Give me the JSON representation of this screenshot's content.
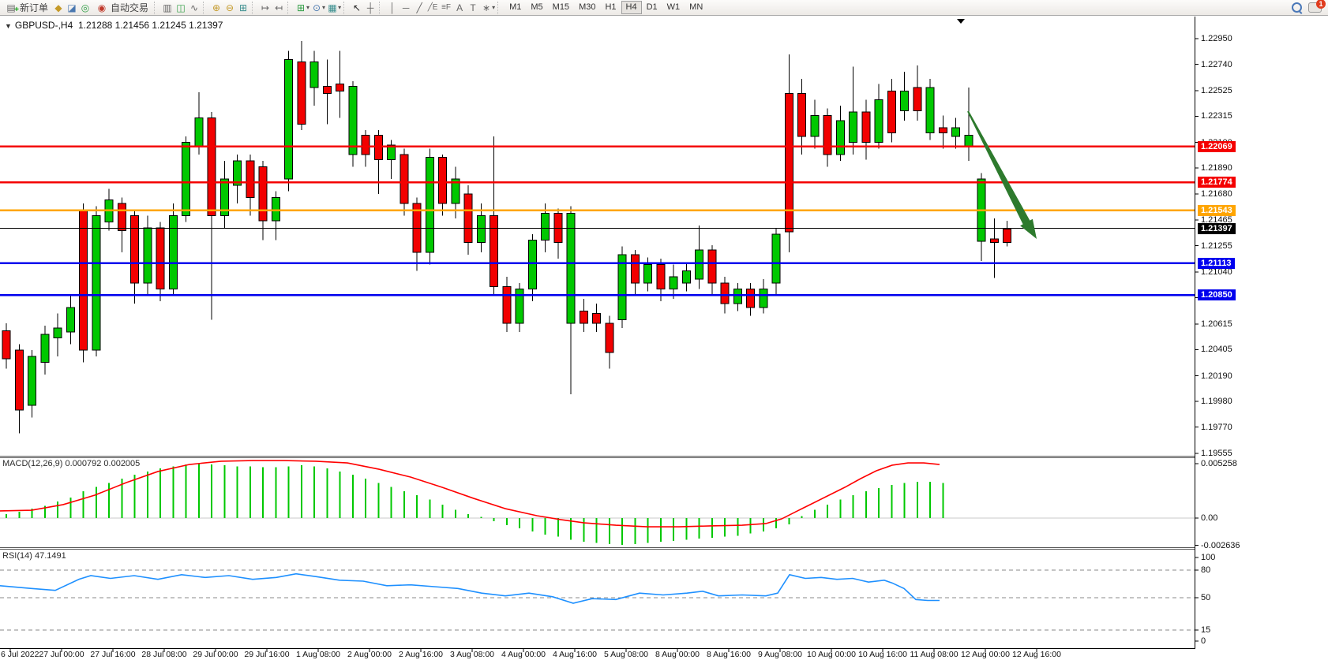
{
  "toolbar": {
    "new_order_label": "新订单",
    "auto_trading_label": "自动交易",
    "timeframes": [
      "M1",
      "M5",
      "M15",
      "M30",
      "H1",
      "H4",
      "D1",
      "W1",
      "MN"
    ],
    "active_timeframe": "H4",
    "notification_count": "1"
  },
  "chart": {
    "symbol_tf": "GBPUSD-,H4",
    "ohlc_text": "1.21288 1.21456 1.21245 1.21397",
    "macd_label_text": "MACD(12,26,9) 0.000792 0.002005",
    "rsi_label_text": "RSI(14) 47.1491"
  },
  "chart_data": {
    "type": "candlestick",
    "symbol": "GBPUSD-",
    "timeframe": "H4",
    "current_bar": {
      "open": 1.21288,
      "high": 1.21456,
      "low": 1.21245,
      "close": 1.21397
    },
    "price_axis_ticks": [
      "1.22950",
      "1.22740",
      "1.22525",
      "1.22315",
      "1.22100",
      "1.21890",
      "1.21680",
      "1.21465",
      "1.21255",
      "1.21040",
      "1.20830",
      "1.20615",
      "1.20405",
      "1.20190",
      "1.19980",
      "1.19770",
      "1.19555"
    ],
    "price_axis_range": {
      "min": 1.19555,
      "max": 1.2295
    },
    "levels": [
      {
        "label": "1.22069",
        "price": 1.22069,
        "color": "#f40000",
        "width": 2.5
      },
      {
        "label": "1.21774",
        "price": 1.21774,
        "color": "#f40000",
        "width": 2.5
      },
      {
        "label": "1.21543",
        "price": 1.21543,
        "color": "#ffa500",
        "width": 2.5
      },
      {
        "label": "1.21397",
        "price": 1.21397,
        "color": "#000000",
        "width": 1
      },
      {
        "label": "1.21113",
        "price": 1.21113,
        "color": "#0000ee",
        "width": 2.5
      },
      {
        "label": "1.20850",
        "price": 1.2085,
        "color": "#0000ee",
        "width": 2.5
      }
    ],
    "x_labels": [
      "6 Jul 2022",
      "27 Jul 00:00",
      "27 Jul 16:00",
      "28 Jul 08:00",
      "29 Jul 00:00",
      "29 Jul 16:00",
      "1 Aug 08:00",
      "2 Aug 00:00",
      "2 Aug 16:00",
      "3 Aug 08:00",
      "4 Aug 00:00",
      "4 Aug 16:00",
      "5 Aug 08:00",
      "8 Aug 00:00",
      "8 Aug 16:00",
      "9 Aug 08:00",
      "10 Aug 00:00",
      "10 Aug 16:00",
      "11 Aug 08:00",
      "12 Aug 00:00",
      "12 Aug 16:00"
    ],
    "candles": [
      [
        0,
        1.2033,
        1.2056,
        1.2025,
        1.2062
      ],
      [
        0,
        1.1991,
        1.204,
        1.1972,
        1.2045
      ],
      [
        1,
        1.1995,
        1.2035,
        1.1985,
        1.204
      ],
      [
        1,
        1.203,
        1.2053,
        1.202,
        1.206
      ],
      [
        1,
        1.205,
        1.2058,
        1.2035,
        1.207
      ],
      [
        1,
        1.2055,
        1.2075,
        1.2045,
        1.2085
      ],
      [
        0,
        1.204,
        1.2155,
        1.203,
        1.216
      ],
      [
        1,
        1.204,
        1.215,
        1.2035,
        1.2158
      ],
      [
        1,
        1.2145,
        1.2163,
        1.2138,
        1.2172
      ],
      [
        0,
        1.2138,
        1.216,
        1.212,
        1.2165
      ],
      [
        0,
        1.2095,
        1.215,
        1.2078,
        1.2155
      ],
      [
        1,
        1.2095,
        1.214,
        1.2085,
        1.215
      ],
      [
        0,
        1.209,
        1.214,
        1.208,
        1.2145
      ],
      [
        1,
        1.209,
        1.215,
        1.2085,
        1.216
      ],
      [
        1,
        1.215,
        1.221,
        1.2145,
        1.2215
      ],
      [
        1,
        1.2207,
        1.223,
        1.22,
        1.2251
      ],
      [
        0,
        1.215,
        1.223,
        1.2065,
        1.2235
      ],
      [
        1,
        1.215,
        1.218,
        1.214,
        1.2195
      ],
      [
        1,
        1.2175,
        1.2195,
        1.216,
        1.22
      ],
      [
        0,
        1.2165,
        1.2195,
        1.215,
        1.22
      ],
      [
        0,
        1.2146,
        1.219,
        1.213,
        1.2195
      ],
      [
        1,
        1.2146,
        1.2165,
        1.213,
        1.217
      ],
      [
        1,
        1.218,
        1.2278,
        1.217,
        1.2285
      ],
      [
        0,
        1.2225,
        1.2276,
        1.222,
        1.2293
      ],
      [
        1,
        1.2255,
        1.2276,
        1.224,
        1.2285
      ],
      [
        0,
        1.225,
        1.2256,
        1.2225,
        1.2278
      ],
      [
        0,
        1.2252,
        1.2258,
        1.223,
        1.2285
      ],
      [
        1,
        1.22,
        1.2256,
        1.219,
        1.226
      ],
      [
        0,
        1.22,
        1.2216,
        1.219,
        1.222
      ],
      [
        0,
        1.2196,
        1.2216,
        1.2168,
        1.222
      ],
      [
        1,
        1.2196,
        1.2208,
        1.218,
        1.2212
      ],
      [
        0,
        1.216,
        1.22,
        1.215,
        1.2205
      ],
      [
        0,
        1.212,
        1.216,
        1.2105,
        1.2165
      ],
      [
        1,
        1.212,
        1.2198,
        1.211,
        1.2205
      ],
      [
        0,
        1.216,
        1.2198,
        1.215,
        1.22
      ],
      [
        1,
        1.216,
        1.218,
        1.2148,
        1.219
      ],
      [
        0,
        1.2128,
        1.2168,
        1.2118,
        1.2175
      ],
      [
        1,
        1.2128,
        1.215,
        1.212,
        1.216
      ],
      [
        0,
        1.2092,
        1.215,
        1.2085,
        1.2215
      ],
      [
        0,
        1.2062,
        1.2092,
        1.2055,
        1.21
      ],
      [
        1,
        1.2062,
        1.209,
        1.2055,
        1.2095
      ],
      [
        1,
        1.209,
        1.213,
        1.208,
        1.2135
      ],
      [
        1,
        1.213,
        1.2152,
        1.212,
        1.216
      ],
      [
        0,
        1.2128,
        1.2152,
        1.2115,
        1.2156
      ],
      [
        1,
        1.2062,
        1.2152,
        1.2004,
        1.2158
      ],
      [
        0,
        1.2062,
        1.2072,
        1.2055,
        1.2082
      ],
      [
        0,
        1.2062,
        1.207,
        1.2055,
        1.2078
      ],
      [
        0,
        1.2038,
        1.2062,
        1.2025,
        1.2068
      ],
      [
        1,
        1.2065,
        1.2118,
        1.2058,
        1.2125
      ],
      [
        0,
        1.2095,
        1.2118,
        1.2085,
        1.2122
      ],
      [
        1,
        1.2095,
        1.211,
        1.2088,
        1.2116
      ],
      [
        0,
        1.209,
        1.211,
        1.208,
        1.2115
      ],
      [
        1,
        1.209,
        1.21,
        1.2082,
        1.211
      ],
      [
        1,
        1.2095,
        1.2105,
        1.2088,
        1.2112
      ],
      [
        1,
        1.2098,
        1.2122,
        1.209,
        1.2142
      ],
      [
        0,
        1.2095,
        1.2122,
        1.2085,
        1.2126
      ],
      [
        0,
        1.2078,
        1.2095,
        1.207,
        1.21
      ],
      [
        1,
        1.2078,
        1.209,
        1.2072,
        1.2095
      ],
      [
        0,
        1.2075,
        1.209,
        1.2068,
        1.2095
      ],
      [
        1,
        1.2075,
        1.209,
        1.207,
        1.2098
      ],
      [
        1,
        1.2095,
        1.2135,
        1.2085,
        1.214
      ],
      [
        0,
        1.2137,
        1.225,
        1.212,
        1.2282
      ],
      [
        0,
        1.2215,
        1.225,
        1.22,
        1.2262
      ],
      [
        1,
        1.2215,
        1.2232,
        1.2205,
        1.2245
      ],
      [
        0,
        1.22,
        1.2232,
        1.219,
        1.2238
      ],
      [
        1,
        1.22,
        1.2228,
        1.2195,
        1.224
      ],
      [
        1,
        1.221,
        1.2235,
        1.22,
        1.2272
      ],
      [
        0,
        1.221,
        1.2235,
        1.2196,
        1.2245
      ],
      [
        1,
        1.221,
        1.2245,
        1.2205,
        1.2258
      ],
      [
        0,
        1.2218,
        1.2252,
        1.221,
        1.2262
      ],
      [
        1,
        1.2236,
        1.2252,
        1.2228,
        1.2268
      ],
      [
        0,
        1.2236,
        1.2255,
        1.2228,
        1.2273
      ],
      [
        1,
        1.2218,
        1.2255,
        1.2212,
        1.2262
      ],
      [
        0,
        1.2218,
        1.2222,
        1.2205,
        1.2232
      ],
      [
        1,
        1.2215,
        1.2222,
        1.2205,
        1.223
      ],
      [
        1,
        1.2207,
        1.2216,
        1.2195,
        1.2255
      ],
      [
        1,
        1.2129,
        1.218,
        1.2113,
        1.2185
      ],
      [
        0,
        1.2128,
        1.2131,
        1.2099,
        1.2148
      ],
      [
        0,
        1.2128,
        1.2139,
        1.2125,
        1.2146
      ]
    ],
    "macd": {
      "label": "MACD(12,26,9)",
      "main_value": 0.000792,
      "signal_value": 0.002005,
      "axis_ticks": [
        "0.005258",
        "0.00",
        "-0.002636"
      ],
      "axis_values": [
        0.005258,
        0,
        -0.002636
      ],
      "histogram": [
        0.0004,
        0.0006,
        0.0009,
        0.0012,
        0.0016,
        0.002,
        0.0026,
        0.003,
        0.0034,
        0.0038,
        0.0042,
        0.0045,
        0.0048,
        0.005,
        0.0052,
        0.0053,
        0.0052,
        0.0051,
        0.005,
        0.005,
        0.0049,
        0.0049,
        0.005,
        0.0051,
        0.005,
        0.0048,
        0.0045,
        0.0042,
        0.0038,
        0.0034,
        0.003,
        0.0026,
        0.0022,
        0.0018,
        0.0013,
        0.0008,
        0.0004,
        0.0001,
        -0.0003,
        -0.0007,
        -0.001,
        -0.0013,
        -0.0016,
        -0.0018,
        -0.0021,
        -0.0023,
        -0.0024,
        -0.0025,
        -0.0026,
        -0.0025,
        -0.0024,
        -0.0023,
        -0.0022,
        -0.0021,
        -0.002,
        -0.0019,
        -0.0018,
        -0.0017,
        -0.0015,
        -0.0013,
        -0.001,
        -0.0006,
        0.0002,
        0.0008,
        0.0013,
        0.0018,
        0.0022,
        0.0026,
        0.0029,
        0.0032,
        0.0034,
        0.0035,
        0.0035,
        0.0034
      ],
      "signal_points": [
        [
          0,
          0.00069
        ],
        [
          40,
          0.00076
        ],
        [
          80,
          0.0013
        ],
        [
          120,
          0.00221
        ],
        [
          160,
          0.00343
        ],
        [
          200,
          0.0045
        ],
        [
          240,
          0.00518
        ],
        [
          280,
          0.00549
        ],
        [
          320,
          0.00556
        ],
        [
          360,
          0.00556
        ],
        [
          400,
          0.00549
        ],
        [
          440,
          0.00533
        ],
        [
          480,
          0.00472
        ],
        [
          520,
          0.00396
        ],
        [
          560,
          0.00297
        ],
        [
          600,
          0.0019
        ],
        [
          640,
          0.00091
        ],
        [
          680,
          0.00023
        ],
        [
          710,
          -0.00015
        ],
        [
          740,
          -0.00046
        ],
        [
          780,
          -0.00069
        ],
        [
          820,
          -0.00084
        ],
        [
          860,
          -0.00084
        ],
        [
          900,
          -0.00076
        ],
        [
          940,
          -0.00069
        ],
        [
          970,
          -0.00053
        ],
        [
          990,
          -8e-05
        ],
        [
          1010,
          0.00069
        ],
        [
          1030,
          0.00145
        ],
        [
          1050,
          0.00221
        ],
        [
          1070,
          0.00297
        ],
        [
          1090,
          0.00381
        ],
        [
          1110,
          0.00457
        ],
        [
          1130,
          0.00511
        ],
        [
          1150,
          0.00533
        ],
        [
          1170,
          0.00533
        ],
        [
          1190,
          0.00518
        ]
      ]
    },
    "rsi": {
      "label": "RSI(14)",
      "value": 47.1491,
      "axis_ticks": [
        "100",
        "80",
        "50",
        "15",
        "0"
      ],
      "axis_values": [
        100,
        80,
        50,
        15,
        0
      ],
      "dashed_levels": [
        80,
        50,
        15
      ],
      "points": [
        [
          0,
          63
        ],
        [
          40,
          60
        ],
        [
          70,
          58
        ],
        [
          100,
          70
        ],
        [
          115,
          74
        ],
        [
          140,
          71
        ],
        [
          170,
          74
        ],
        [
          200,
          70
        ],
        [
          230,
          75
        ],
        [
          260,
          72
        ],
        [
          290,
          74
        ],
        [
          320,
          70
        ],
        [
          350,
          72
        ],
        [
          375,
          76
        ],
        [
          400,
          73
        ],
        [
          430,
          69
        ],
        [
          460,
          68
        ],
        [
          490,
          63
        ],
        [
          520,
          64
        ],
        [
          550,
          62
        ],
        [
          580,
          60
        ],
        [
          610,
          55
        ],
        [
          640,
          52
        ],
        [
          670,
          55
        ],
        [
          700,
          51
        ],
        [
          726,
          44
        ],
        [
          750,
          49
        ],
        [
          780,
          48
        ],
        [
          810,
          55
        ],
        [
          840,
          53
        ],
        [
          870,
          55
        ],
        [
          890,
          57
        ],
        [
          910,
          52
        ],
        [
          940,
          53
        ],
        [
          970,
          52
        ],
        [
          985,
          55
        ],
        [
          1000,
          75
        ],
        [
          1020,
          71
        ],
        [
          1040,
          72
        ],
        [
          1060,
          70
        ],
        [
          1080,
          71
        ],
        [
          1100,
          67
        ],
        [
          1120,
          69
        ],
        [
          1130,
          66
        ],
        [
          1145,
          60
        ],
        [
          1160,
          48
        ],
        [
          1175,
          47
        ],
        [
          1190,
          47
        ]
      ]
    },
    "annotations": [
      {
        "type": "arrow",
        "direction": "down-right",
        "color": "#2d7a2d",
        "from_price": 1.2228,
        "to_price": 1.212
      }
    ],
    "colors": {
      "bull": "#00c800",
      "bear": "#f20000",
      "wick": "#000000",
      "macd_histogram": "#00c800",
      "macd_signal": "#ff0000",
      "rsi_line": "#1e90ff"
    }
  }
}
